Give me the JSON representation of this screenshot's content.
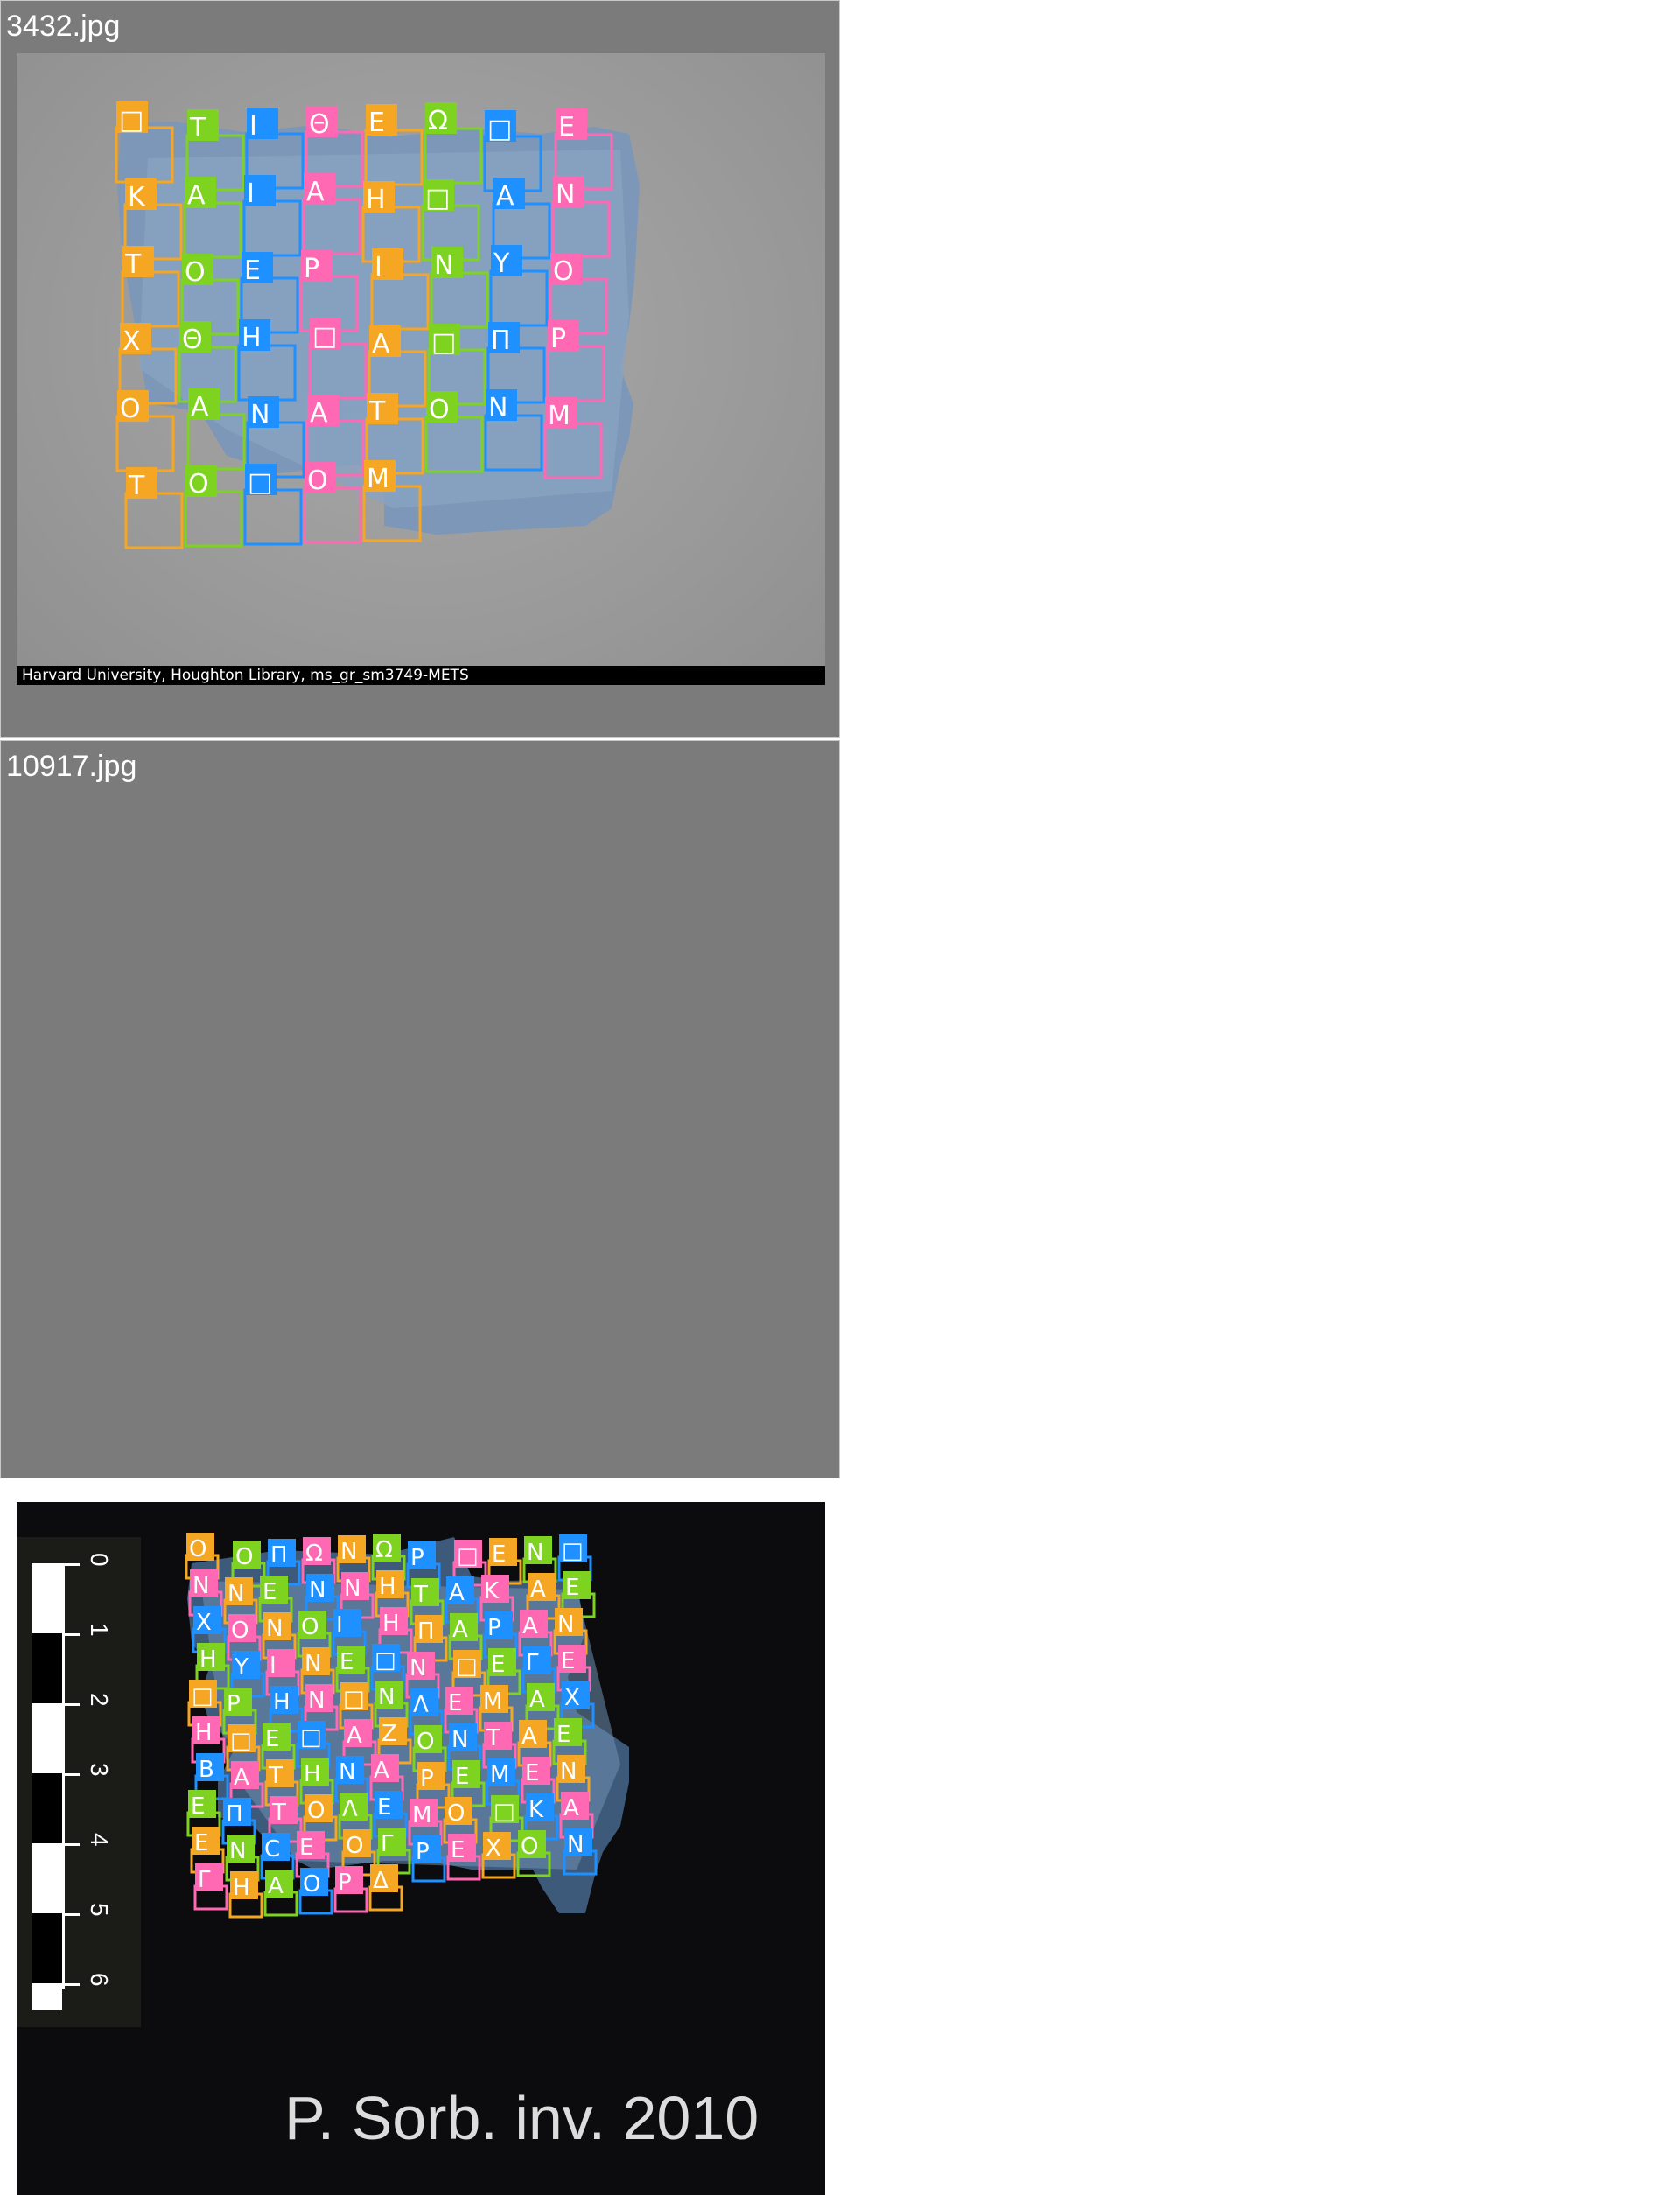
{
  "panels": [
    {
      "filename": "3432.jpg",
      "caption": "Harvard University, Houghton Library, ms_gr_sm3749-METS",
      "letters": [
        "□",
        "T",
        "I",
        "Θ",
        "E",
        "Ω",
        "□",
        "E",
        "K",
        "A",
        "I",
        "A",
        "H",
        "□",
        "A",
        "N",
        "T",
        "O",
        "E",
        "P",
        "I",
        "N",
        "Y",
        "O",
        "X",
        "Θ",
        "H",
        "□",
        "A",
        "□",
        "Π",
        "P",
        "O",
        "A",
        "N",
        "A",
        "T",
        "O",
        "N",
        "M",
        "T",
        "O",
        "□",
        "O",
        "M"
      ]
    },
    {
      "filename": "10917.jpg",
      "inventory_label": "P. Sorb. inv. 2010",
      "scale_numbers": [
        "0",
        "1",
        "2",
        "3",
        "4",
        "5",
        "6"
      ],
      "letters": [
        "O",
        "O",
        "Π",
        "Ω",
        "N",
        "Ω",
        "P",
        "□",
        "E",
        "N",
        "□",
        "N",
        "N",
        "E",
        "N",
        "N",
        "H",
        "T",
        "A",
        "K",
        "A",
        "E",
        "X",
        "O",
        "N",
        "O",
        "I",
        "H",
        "Π",
        "A",
        "P",
        "A",
        "N",
        "H",
        "Y",
        "I",
        "N",
        "E",
        "□",
        "N",
        "□",
        "E",
        "Γ",
        "E",
        "□",
        "P",
        "H",
        "N",
        "□",
        "N",
        "Λ",
        "E",
        "M",
        "A",
        "X",
        "H",
        "□",
        "E",
        "□",
        "A",
        "Z",
        "O",
        "N",
        "T",
        "A",
        "E",
        "B",
        "A",
        "T",
        "H",
        "N",
        "A",
        "P",
        "E",
        "M",
        "E",
        "N",
        "E",
        "Π",
        "T",
        "O",
        "Λ",
        "E",
        "M",
        "O",
        "□",
        "K",
        "A",
        "E",
        "N",
        "C",
        "E",
        "O",
        "Γ",
        "P",
        "E",
        "X",
        "O",
        "N",
        "Γ",
        "H",
        "A",
        "O",
        "P",
        "Δ"
      ]
    }
  ],
  "colors": {
    "panel_bg": "#7b7b7b",
    "papyrus_light": "#8aa3c2",
    "papyrus_dark_bg": "#0c0c0e",
    "palette": [
      "#f5a623",
      "#f7931e",
      "#ff6b6b",
      "#e83a3a",
      "#5ae04a",
      "#2ecc71",
      "#3ddc84",
      "#7ed321",
      "#f9a79a",
      "#ff8a80",
      "#4b0082",
      "#6a5acd",
      "#6c7ff0",
      "#5b6cf3",
      "#1e90ff",
      "#00bcd4",
      "#26c6da",
      "#2bb7c8",
      "#e040fb",
      "#c04ad8",
      "#e91e63",
      "#ff69b4",
      "#1b8a3a",
      "#228b22",
      "#ff7f27",
      "#0033cc",
      "#3f51b5",
      "#8bc34a"
    ]
  }
}
